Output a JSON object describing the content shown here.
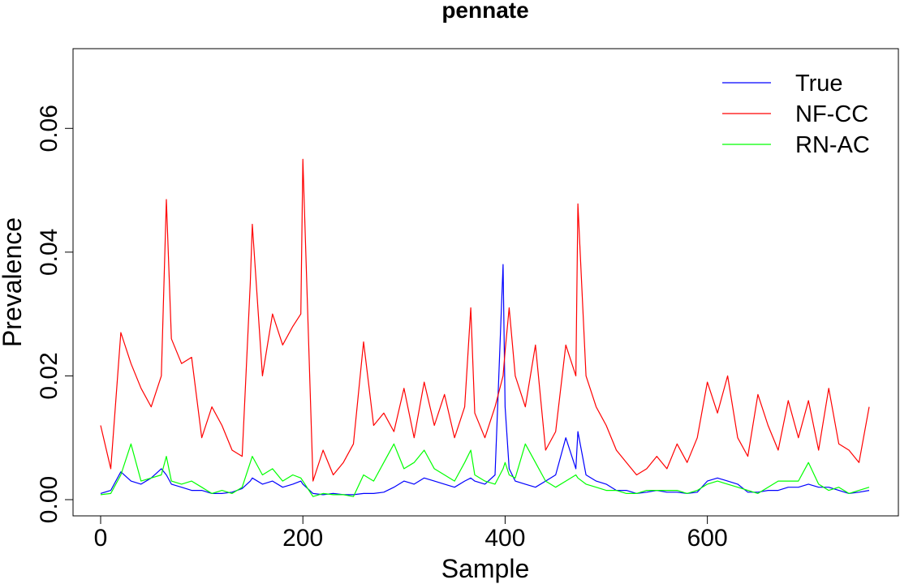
{
  "chart_data": {
    "type": "line",
    "title": "pennate",
    "xlabel": "Sample",
    "ylabel": "Prevalence",
    "xlim": [
      0,
      760
    ],
    "ylim": [
      0,
      0.07
    ],
    "x_ticks": [
      0,
      200,
      400,
      600
    ],
    "x_tick_labels": [
      "0",
      "200",
      "400",
      "600"
    ],
    "y_ticks": [
      0.0,
      0.02,
      0.04,
      0.06
    ],
    "y_tick_labels": [
      "0.00",
      "0.02",
      "0.04",
      "0.06"
    ],
    "grid": false,
    "legend_position": "top-right",
    "x": [
      0,
      10,
      20,
      30,
      40,
      50,
      60,
      65,
      70,
      80,
      90,
      100,
      110,
      120,
      130,
      140,
      148,
      150,
      160,
      170,
      180,
      190,
      198,
      200,
      210,
      220,
      230,
      240,
      250,
      260,
      270,
      280,
      290,
      300,
      310,
      320,
      330,
      340,
      350,
      360,
      366,
      370,
      380,
      390,
      398,
      400,
      404,
      410,
      420,
      430,
      440,
      450,
      460,
      470,
      472,
      480,
      490,
      500,
      510,
      520,
      530,
      540,
      550,
      560,
      570,
      580,
      590,
      600,
      610,
      620,
      630,
      640,
      650,
      660,
      670,
      680,
      690,
      700,
      710,
      720,
      730,
      740,
      750,
      760
    ],
    "series": [
      {
        "name": "True",
        "color": "#0000ff",
        "values": [
          0.001,
          0.0015,
          0.0045,
          0.003,
          0.0025,
          0.0035,
          0.005,
          0.004,
          0.0025,
          0.002,
          0.0015,
          0.0015,
          0.001,
          0.001,
          0.0012,
          0.0018,
          0.003,
          0.0035,
          0.0025,
          0.003,
          0.002,
          0.0025,
          0.003,
          0.0025,
          0.001,
          0.0008,
          0.001,
          0.0008,
          0.0008,
          0.001,
          0.001,
          0.0012,
          0.002,
          0.003,
          0.0025,
          0.0035,
          0.003,
          0.0025,
          0.002,
          0.003,
          0.0035,
          0.003,
          0.0025,
          0.004,
          0.038,
          0.015,
          0.005,
          0.003,
          0.0025,
          0.002,
          0.003,
          0.004,
          0.01,
          0.005,
          0.011,
          0.004,
          0.003,
          0.0025,
          0.0015,
          0.0015,
          0.001,
          0.0012,
          0.0015,
          0.0012,
          0.0012,
          0.001,
          0.0012,
          0.003,
          0.0035,
          0.003,
          0.0025,
          0.0012,
          0.0012,
          0.0015,
          0.0015,
          0.002,
          0.002,
          0.0025,
          0.002,
          0.002,
          0.0015,
          0.001,
          0.0012,
          0.0015
        ]
      },
      {
        "name": "NF-CC",
        "color": "#ff0000",
        "values": [
          0.012,
          0.005,
          0.027,
          0.022,
          0.018,
          0.015,
          0.02,
          0.0485,
          0.026,
          0.022,
          0.023,
          0.01,
          0.015,
          0.012,
          0.008,
          0.007,
          0.035,
          0.0445,
          0.02,
          0.03,
          0.025,
          0.028,
          0.03,
          0.055,
          0.003,
          0.008,
          0.004,
          0.006,
          0.009,
          0.0255,
          0.012,
          0.014,
          0.011,
          0.018,
          0.01,
          0.019,
          0.012,
          0.017,
          0.01,
          0.015,
          0.031,
          0.014,
          0.01,
          0.015,
          0.02,
          0.024,
          0.031,
          0.02,
          0.015,
          0.025,
          0.008,
          0.011,
          0.025,
          0.02,
          0.0478,
          0.02,
          0.015,
          0.012,
          0.008,
          0.006,
          0.004,
          0.005,
          0.007,
          0.005,
          0.009,
          0.006,
          0.01,
          0.019,
          0.014,
          0.02,
          0.01,
          0.007,
          0.017,
          0.012,
          0.008,
          0.016,
          0.01,
          0.016,
          0.008,
          0.018,
          0.009,
          0.008,
          0.006,
          0.015
        ]
      },
      {
        "name": "RN-AC",
        "color": "#00ff00",
        "values": [
          0.0008,
          0.001,
          0.004,
          0.009,
          0.003,
          0.0035,
          0.004,
          0.007,
          0.003,
          0.0025,
          0.003,
          0.002,
          0.001,
          0.0015,
          0.001,
          0.002,
          0.006,
          0.007,
          0.004,
          0.005,
          0.003,
          0.004,
          0.0035,
          0.003,
          0.0005,
          0.001,
          0.0008,
          0.0008,
          0.0005,
          0.004,
          0.003,
          0.006,
          0.009,
          0.005,
          0.006,
          0.008,
          0.005,
          0.004,
          0.003,
          0.006,
          0.008,
          0.004,
          0.003,
          0.0025,
          0.005,
          0.006,
          0.004,
          0.0035,
          0.009,
          0.006,
          0.003,
          0.002,
          0.003,
          0.004,
          0.0035,
          0.0025,
          0.002,
          0.0015,
          0.0015,
          0.001,
          0.001,
          0.0015,
          0.0015,
          0.0015,
          0.0015,
          0.001,
          0.0015,
          0.0025,
          0.003,
          0.0025,
          0.002,
          0.0015,
          0.001,
          0.002,
          0.003,
          0.003,
          0.003,
          0.006,
          0.0025,
          0.0015,
          0.002,
          0.001,
          0.0015,
          0.002
        ]
      }
    ]
  }
}
